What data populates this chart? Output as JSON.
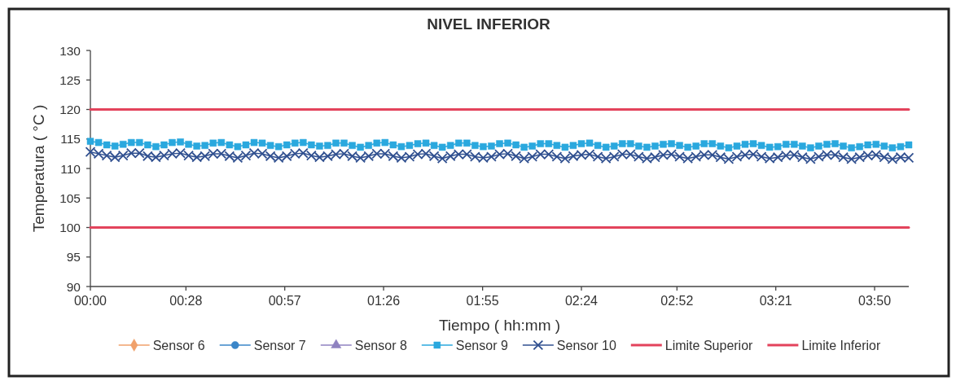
{
  "chart_data": {
    "type": "line",
    "title": "NIVEL INFERIOR",
    "xlabel": "Tiempo ( hh:mm )",
    "ylabel": "Temperatura ( °C )",
    "xlim": [
      0,
      4
    ],
    "ylim": [
      90,
      130
    ],
    "yticks": [
      90,
      95,
      100,
      105,
      110,
      115,
      120,
      125,
      130
    ],
    "xticks": [
      {
        "value": 0,
        "label": "00:00"
      },
      {
        "value": 0.467,
        "label": "00:28"
      },
      {
        "value": 0.95,
        "label": "00:57"
      },
      {
        "value": 1.433,
        "label": "01:26"
      },
      {
        "value": 1.917,
        "label": "01:55"
      },
      {
        "value": 2.4,
        "label": "02:24"
      },
      {
        "value": 2.867,
        "label": "02:52"
      },
      {
        "value": 3.35,
        "label": "03:21"
      },
      {
        "value": 3.833,
        "label": "03:50"
      }
    ],
    "legend": "bottom",
    "x": [
      0,
      0.04,
      0.08,
      0.12,
      0.16,
      0.2,
      0.24,
      0.28,
      0.32,
      0.36,
      0.4,
      0.44,
      0.48,
      0.52,
      0.56,
      0.6,
      0.64,
      0.68,
      0.72,
      0.76,
      0.8,
      0.84,
      0.88,
      0.92,
      0.96,
      1,
      1.04,
      1.08,
      1.12,
      1.16,
      1.2,
      1.24,
      1.28,
      1.32,
      1.36,
      1.4,
      1.44,
      1.48,
      1.52,
      1.56,
      1.6,
      1.64,
      1.68,
      1.72,
      1.76,
      1.8,
      1.84,
      1.88,
      1.92,
      1.96,
      2,
      2.04,
      2.08,
      2.12,
      2.16,
      2.2,
      2.24,
      2.28,
      2.32,
      2.36,
      2.4,
      2.44,
      2.48,
      2.52,
      2.56,
      2.6,
      2.64,
      2.68,
      2.72,
      2.76,
      2.8,
      2.84,
      2.88,
      2.92,
      2.96,
      3,
      3.04,
      3.08,
      3.12,
      3.16,
      3.2,
      3.24,
      3.28,
      3.32,
      3.36,
      3.4,
      3.44,
      3.48,
      3.52,
      3.56,
      3.6,
      3.64,
      3.68,
      3.72,
      3.76,
      3.8,
      3.84,
      3.88,
      3.92,
      3.96,
      4
    ],
    "series": [
      {
        "name": "Sensor 6",
        "color": "#f0a06a",
        "marker": "diamond",
        "values": [
          null,
          null,
          null,
          null,
          null,
          null,
          null,
          null,
          null,
          null,
          null,
          null,
          null,
          null,
          null,
          null,
          null,
          null,
          null,
          null,
          null,
          null,
          null,
          null,
          null,
          null,
          null,
          null,
          null,
          null,
          null,
          null,
          null,
          null,
          null,
          null,
          null,
          null,
          null,
          null,
          null,
          null,
          null,
          null,
          null,
          null,
          null,
          null,
          null,
          null,
          null,
          null,
          null,
          null,
          null,
          null,
          null,
          null,
          null,
          null,
          null,
          null,
          null,
          null,
          null,
          null,
          null,
          null,
          null,
          null,
          null,
          null,
          null,
          null,
          null,
          null,
          null,
          null,
          null,
          null,
          null,
          null,
          null,
          null,
          null,
          null,
          null,
          null,
          null,
          null,
          null,
          null,
          null,
          null,
          null,
          null,
          null,
          null,
          null,
          null,
          null
        ]
      },
      {
        "name": "Sensor 7",
        "color": "#3a86c8",
        "marker": "circle",
        "values": [
          null,
          null,
          null,
          null,
          null,
          null,
          null,
          null,
          null,
          null,
          null,
          null,
          null,
          null,
          null,
          null,
          null,
          null,
          null,
          null,
          null,
          null,
          null,
          null,
          null,
          null,
          null,
          null,
          null,
          null,
          null,
          null,
          null,
          null,
          null,
          null,
          null,
          null,
          null,
          null,
          null,
          null,
          null,
          null,
          null,
          null,
          null,
          null,
          null,
          null,
          null,
          null,
          null,
          null,
          null,
          null,
          null,
          null,
          null,
          null,
          null,
          null,
          null,
          null,
          null,
          null,
          null,
          null,
          null,
          null,
          null,
          null,
          null,
          null,
          null,
          null,
          null,
          null,
          null,
          null,
          null,
          null,
          null,
          null,
          null,
          null,
          null,
          null,
          null,
          null,
          null,
          null,
          null,
          null,
          null,
          null,
          null,
          null,
          null,
          null,
          null
        ]
      },
      {
        "name": "Sensor 8",
        "color": "#8f82c0",
        "marker": "triangle",
        "values": [
          null,
          null,
          null,
          null,
          null,
          null,
          null,
          null,
          null,
          null,
          null,
          null,
          null,
          null,
          null,
          null,
          null,
          null,
          null,
          null,
          null,
          null,
          null,
          null,
          null,
          null,
          null,
          null,
          null,
          null,
          null,
          null,
          null,
          null,
          null,
          null,
          null,
          null,
          null,
          null,
          null,
          null,
          null,
          null,
          null,
          null,
          null,
          null,
          null,
          null,
          null,
          null,
          null,
          null,
          null,
          null,
          null,
          null,
          null,
          null,
          null,
          null,
          null,
          null,
          null,
          null,
          null,
          null,
          null,
          null,
          null,
          null,
          null,
          null,
          null,
          null,
          null,
          null,
          null,
          null,
          null,
          null,
          null,
          null,
          null,
          null,
          null,
          null,
          null,
          null,
          null,
          null,
          null,
          null,
          null,
          null,
          null,
          null,
          null,
          null,
          null
        ]
      },
      {
        "name": "Sensor 9",
        "color": "#2aa8de",
        "marker": "square",
        "values": [
          114.6,
          114.4,
          114.0,
          113.8,
          114.1,
          114.4,
          114.4,
          114.0,
          113.7,
          114.0,
          114.4,
          114.5,
          114.1,
          113.8,
          113.9,
          114.3,
          114.4,
          114.0,
          113.7,
          114.0,
          114.4,
          114.3,
          113.9,
          113.7,
          114.0,
          114.3,
          114.4,
          114.0,
          113.8,
          113.9,
          114.3,
          114.3,
          113.9,
          113.6,
          113.9,
          114.3,
          114.4,
          114.0,
          113.7,
          113.9,
          114.2,
          114.3,
          113.9,
          113.6,
          113.9,
          114.3,
          114.3,
          113.9,
          113.7,
          113.8,
          114.2,
          114.3,
          114.0,
          113.6,
          113.8,
          114.2,
          114.2,
          113.9,
          113.6,
          113.9,
          114.2,
          114.3,
          113.9,
          113.6,
          113.8,
          114.2,
          114.2,
          113.8,
          113.6,
          113.8,
          114.1,
          114.2,
          113.9,
          113.6,
          113.8,
          114.2,
          114.2,
          113.8,
          113.5,
          113.8,
          114.1,
          114.2,
          113.9,
          113.6,
          113.7,
          114.1,
          114.1,
          113.8,
          113.5,
          113.8,
          114.1,
          114.2,
          113.8,
          113.5,
          113.7,
          114.0,
          114.1,
          113.8,
          113.5,
          113.7,
          114.0
        ]
      },
      {
        "name": "Sensor 10",
        "color": "#2f4f8f",
        "marker": "cross",
        "values": [
          112.8,
          112.5,
          112.2,
          111.9,
          112.2,
          112.6,
          112.6,
          112.1,
          111.9,
          112.2,
          112.5,
          112.6,
          112.2,
          111.9,
          112.1,
          112.5,
          112.5,
          112.1,
          111.8,
          112.2,
          112.6,
          112.5,
          112.1,
          111.8,
          112.1,
          112.5,
          112.6,
          112.2,
          111.9,
          112.1,
          112.4,
          112.5,
          112.1,
          111.8,
          112.1,
          112.5,
          112.5,
          112.1,
          111.8,
          112.0,
          112.4,
          112.5,
          112.1,
          111.7,
          112.1,
          112.4,
          112.4,
          112.0,
          111.8,
          112.0,
          112.4,
          112.5,
          112.1,
          111.7,
          112.0,
          112.4,
          112.4,
          112.0,
          111.7,
          112.1,
          112.3,
          112.4,
          112.0,
          111.7,
          112.0,
          112.4,
          112.4,
          112.0,
          111.7,
          111.9,
          112.3,
          112.4,
          112.0,
          111.7,
          112.0,
          112.3,
          112.3,
          111.9,
          111.6,
          112.0,
          112.3,
          112.4,
          112.0,
          111.7,
          111.9,
          112.2,
          112.3,
          111.9,
          111.6,
          112.0,
          112.3,
          112.3,
          111.9,
          111.6,
          111.9,
          112.2,
          112.3,
          111.9,
          111.6,
          111.9,
          111.8
        ]
      },
      {
        "name": "Limite Superior",
        "color": "#e3435c",
        "marker": "none",
        "values": [
          120,
          120,
          120,
          120,
          120,
          120,
          120,
          120,
          120,
          120,
          120,
          120,
          120,
          120,
          120,
          120,
          120,
          120,
          120,
          120,
          120,
          120,
          120,
          120,
          120,
          120,
          120,
          120,
          120,
          120,
          120,
          120,
          120,
          120,
          120,
          120,
          120,
          120,
          120,
          120,
          120,
          120,
          120,
          120,
          120,
          120,
          120,
          120,
          120,
          120,
          120,
          120,
          120,
          120,
          120,
          120,
          120,
          120,
          120,
          120,
          120,
          120,
          120,
          120,
          120,
          120,
          120,
          120,
          120,
          120,
          120,
          120,
          120,
          120,
          120,
          120,
          120,
          120,
          120,
          120,
          120,
          120,
          120,
          120,
          120,
          120,
          120,
          120,
          120,
          120,
          120,
          120,
          120,
          120,
          120,
          120,
          120,
          120,
          120,
          120,
          120
        ]
      },
      {
        "name": "Limite Inferior",
        "color": "#e3435c",
        "marker": "none",
        "values": [
          100,
          100,
          100,
          100,
          100,
          100,
          100,
          100,
          100,
          100,
          100,
          100,
          100,
          100,
          100,
          100,
          100,
          100,
          100,
          100,
          100,
          100,
          100,
          100,
          100,
          100,
          100,
          100,
          100,
          100,
          100,
          100,
          100,
          100,
          100,
          100,
          100,
          100,
          100,
          100,
          100,
          100,
          100,
          100,
          100,
          100,
          100,
          100,
          100,
          100,
          100,
          100,
          100,
          100,
          100,
          100,
          100,
          100,
          100,
          100,
          100,
          100,
          100,
          100,
          100,
          100,
          100,
          100,
          100,
          100,
          100,
          100,
          100,
          100,
          100,
          100,
          100,
          100,
          100,
          100,
          100,
          100,
          100,
          100,
          100,
          100,
          100,
          100,
          100,
          100,
          100,
          100,
          100,
          100,
          100,
          100,
          100,
          100,
          100,
          100,
          100
        ]
      }
    ]
  }
}
